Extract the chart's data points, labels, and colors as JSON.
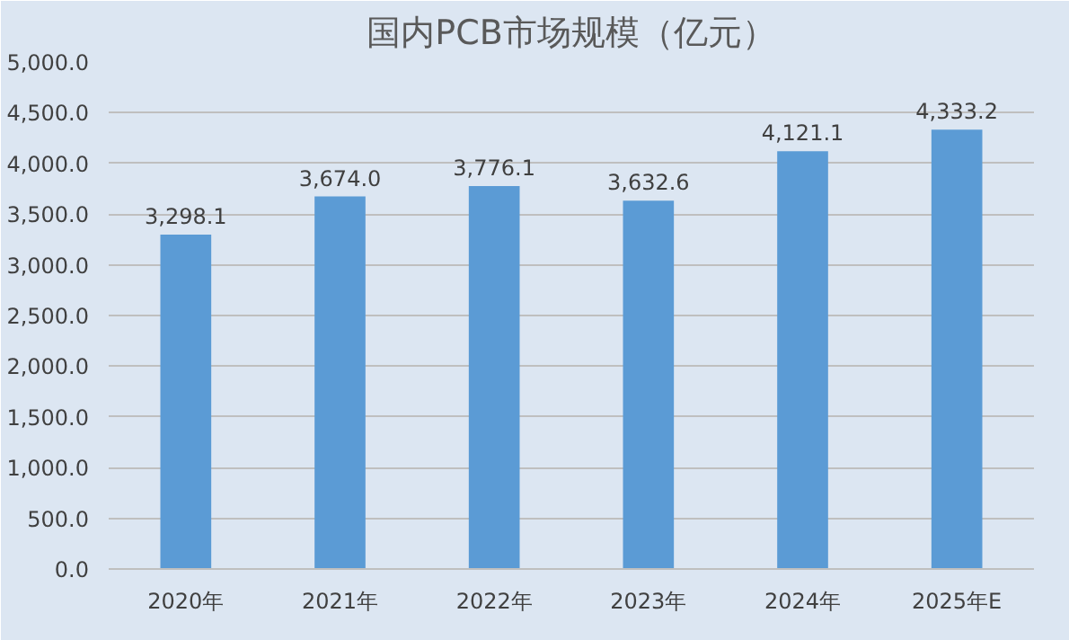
{
  "chart_data": {
    "type": "bar",
    "title": "国内PCB市场规模（亿元）",
    "categories": [
      "2020年",
      "2021年",
      "2022年",
      "2023年",
      "2024年",
      "2025年E"
    ],
    "values": [
      3298.1,
      3674.0,
      3776.1,
      3632.6,
      4121.1,
      4333.2
    ],
    "value_labels": [
      "3,298.1",
      "3,674.0",
      "3,776.1",
      "3,632.6",
      "4,121.1",
      "4,333.2"
    ],
    "color": "#5b9bd5",
    "ylim": [
      0,
      5000
    ],
    "yticks": [
      {
        "value": 0,
        "label": "0.0"
      },
      {
        "value": 500,
        "label": "500.0"
      },
      {
        "value": 1000,
        "label": "1,000.0"
      },
      {
        "value": 1500,
        "label": "1,500.0"
      },
      {
        "value": 2000,
        "label": "2,000.0"
      },
      {
        "value": 2500,
        "label": "2,500.0"
      },
      {
        "value": 3000,
        "label": "3,000.0"
      },
      {
        "value": 3500,
        "label": "3,500.0"
      },
      {
        "value": 4000,
        "label": "4,000.0"
      },
      {
        "value": 4500,
        "label": "4,500.0"
      },
      {
        "value": 5000,
        "label": "5,000.0"
      }
    ],
    "grid": "y"
  }
}
